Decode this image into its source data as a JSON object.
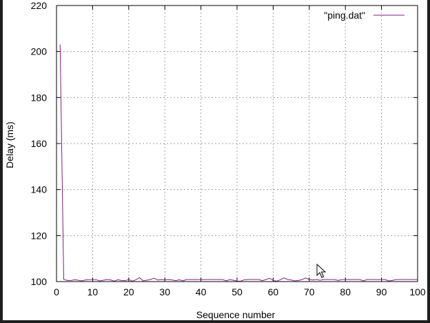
{
  "chart_data": {
    "type": "line",
    "xlabel": "Sequence number",
    "ylabel": "Delay (ms)",
    "xlim": [
      0,
      100
    ],
    "ylim": [
      100,
      220
    ],
    "xticks": [
      0,
      10,
      20,
      30,
      40,
      50,
      60,
      70,
      80,
      90,
      100
    ],
    "yticks": [
      100,
      120,
      140,
      160,
      180,
      200,
      220
    ],
    "grid": true,
    "legend_position": "top-right",
    "series": [
      {
        "name": "\"ping.dat\"",
        "color": "#7b1f7b",
        "x": [
          1,
          2,
          3,
          4,
          5,
          6,
          7,
          8,
          9,
          10,
          11,
          12,
          13,
          14,
          15,
          16,
          17,
          18,
          19,
          20,
          21,
          22,
          23,
          24,
          25,
          26,
          27,
          28,
          29,
          30,
          31,
          32,
          33,
          34,
          35,
          36,
          37,
          38,
          39,
          40,
          41,
          42,
          43,
          44,
          45,
          46,
          47,
          48,
          49,
          50,
          51,
          52,
          53,
          54,
          55,
          56,
          57,
          58,
          59,
          60,
          61,
          62,
          63,
          64,
          65,
          66,
          67,
          68,
          69,
          70,
          71,
          72,
          73,
          74,
          75,
          76,
          77,
          78,
          79,
          80,
          81,
          82,
          83,
          84,
          85,
          86,
          87,
          88,
          89,
          90,
          91,
          92,
          93,
          94,
          95,
          96,
          97,
          98,
          99,
          100
        ],
        "y": [
          203,
          101,
          100.5,
          100.5,
          100.8,
          100.6,
          100.3,
          100.7,
          100.8,
          100.9,
          100.8,
          100.3,
          100.6,
          100.9,
          100.7,
          100.2,
          100.8,
          100.5,
          100.4,
          100.9,
          100.2,
          100.8,
          101.7,
          100.3,
          100.6,
          100.9,
          101.5,
          100.7,
          100.9,
          100.8,
          100.9,
          100.7,
          100.4,
          100.8,
          100.3,
          100.9,
          100.9,
          100.9,
          100.9,
          100.9,
          100.9,
          100.9,
          100.9,
          100.9,
          100.9,
          100.9,
          100.3,
          100.9,
          100.6,
          100.2,
          100.2,
          100.8,
          100.9,
          100.9,
          100.9,
          100.9,
          100.4,
          100.9,
          101.5,
          100.5,
          100.2,
          100.8,
          101.6,
          100.9,
          100.7,
          100.3,
          100.5,
          100.9,
          101.6,
          100.9,
          100.7,
          100.9,
          100.6,
          100.9,
          100.9,
          100.9,
          100.9,
          100.5,
          100.9,
          100.9,
          100.9,
          100.9,
          100.9,
          100.9,
          100.3,
          100.9,
          100.9,
          100.9,
          100.9,
          100.9,
          100.9,
          100.3,
          100.5,
          100.9,
          100.9,
          100.9,
          100.9,
          100.9,
          100.9,
          100.9
        ]
      }
    ]
  }
}
